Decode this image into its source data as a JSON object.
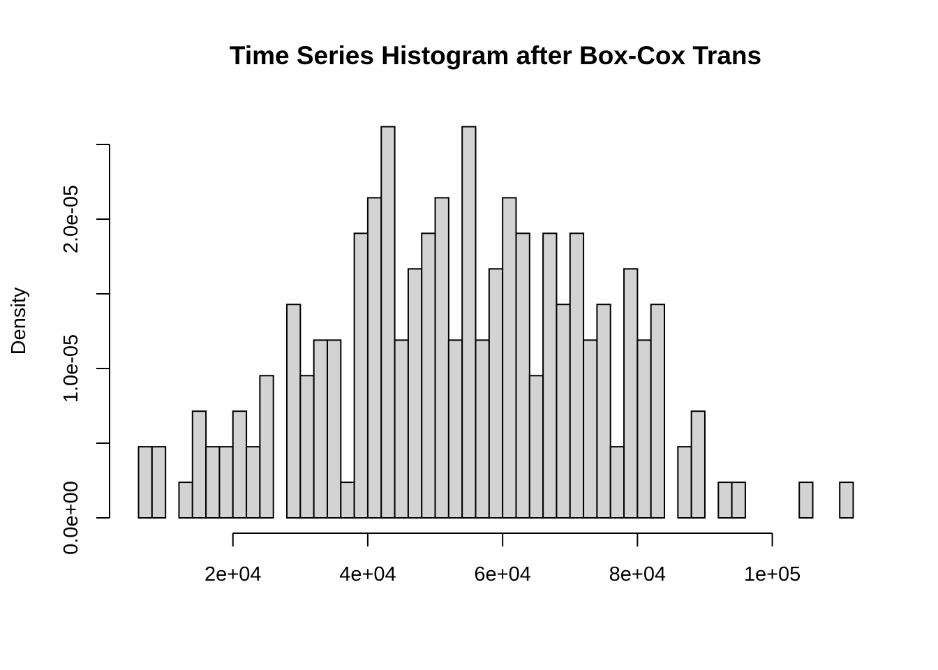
{
  "chart_data": {
    "type": "bar",
    "title": "Time Series Histogram after Box-Cox Trans",
    "xlabel": "",
    "ylabel": "Density",
    "bin_width": 2000,
    "bins_start": 6000,
    "xlim": [
      6000,
      112000
    ],
    "ylim": [
      0,
      2.5e-05
    ],
    "x_ticks": [
      20000,
      40000,
      60000,
      80000,
      100000
    ],
    "x_tick_labels": [
      "2e+04",
      "4e+04",
      "6e+04",
      "8e+04",
      "1e+05"
    ],
    "y_ticks": [
      0,
      5e-06,
      1e-05,
      1.5e-05,
      2e-05,
      2.5e-05
    ],
    "y_tick_labels": [
      "0.0e+00",
      "",
      "1.0e-05",
      "",
      "2.0e-05",
      ""
    ],
    "values": [
      4.76e-06,
      4.76e-06,
      0,
      2.38e-06,
      7.14e-06,
      4.76e-06,
      4.76e-06,
      7.14e-06,
      4.76e-06,
      9.52e-06,
      0,
      1.429e-05,
      9.52e-06,
      1.19e-05,
      1.19e-05,
      2.38e-06,
      1.905e-05,
      2.143e-05,
      2.619e-05,
      1.19e-05,
      1.667e-05,
      1.905e-05,
      2.143e-05,
      1.19e-05,
      2.619e-05,
      1.19e-05,
      1.667e-05,
      2.143e-05,
      1.905e-05,
      9.52e-06,
      1.905e-05,
      1.429e-05,
      1.905e-05,
      1.19e-05,
      1.429e-05,
      4.76e-06,
      1.667e-05,
      1.19e-05,
      1.429e-05,
      0,
      4.76e-06,
      7.14e-06,
      0,
      2.38e-06,
      2.38e-06,
      0,
      0,
      0,
      0,
      2.38e-06,
      0,
      0,
      2.38e-06
    ],
    "grid": false,
    "legend": "none",
    "bar_fill": "#d3d3d3",
    "bar_stroke": "#000000"
  }
}
